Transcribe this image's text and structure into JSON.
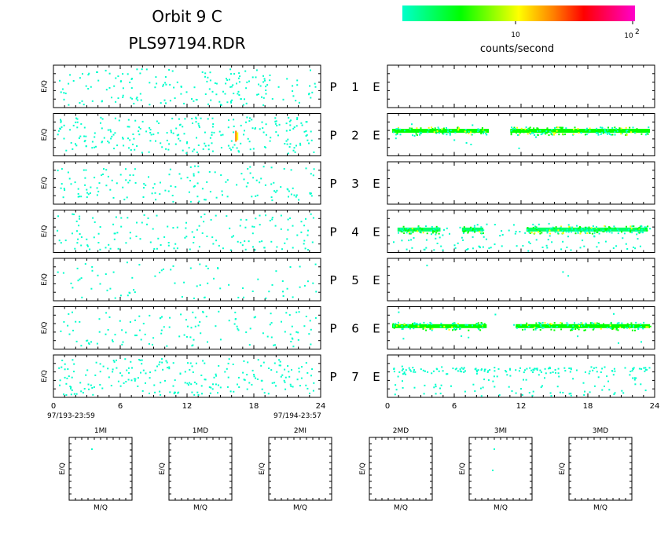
{
  "title": {
    "line1": "Orbit 9 C",
    "line2": "PLS97194.RDR"
  },
  "colorbar": {
    "label": "counts/second",
    "tick_10": "10",
    "tick_100_base": "10",
    "tick_100_exp": "2",
    "colors": [
      "#00ffcc",
      "#00ff00",
      "#ffff00",
      "#ff8000",
      "#ff0000",
      "#ff00cc"
    ]
  },
  "chart_data": [
    {
      "type": "heatmap",
      "description_scope": "Two columns of 7 stacked E/Q vs time strips (P rows), counts/second color-coded",
      "ylabel": "E/Q",
      "x_ticks": [
        "0",
        "6",
        "12",
        "18",
        "24"
      ],
      "xlim": [
        0,
        24
      ],
      "x_start_label": "97/193-23:59",
      "x_end_label": "97/194-23:57",
      "row_labels": [
        {
          "p": "P",
          "n": "1",
          "e": "E"
        },
        {
          "p": "P",
          "n": "2",
          "e": "E"
        },
        {
          "p": "P",
          "n": "3",
          "e": "E"
        },
        {
          "p": "P",
          "n": "4",
          "e": "E"
        },
        {
          "p": "P",
          "n": "5",
          "e": "E"
        },
        {
          "p": "P",
          "n": "6",
          "e": "E"
        },
        {
          "p": "P",
          "n": "7",
          "e": "E"
        }
      ],
      "left_density": [
        0.12,
        0.16,
        0.1,
        0.1,
        0.05,
        0.08,
        0.15
      ],
      "right_bands": [
        {
          "row": 2,
          "level": 0.6,
          "color": "#00ff00",
          "segments": [
            [
              0.0,
              9.0
            ],
            [
              11.0,
              24.0
            ]
          ]
        },
        {
          "row": 4,
          "level": 0.55,
          "color": "#00ff66",
          "segments": [
            [
              0.5,
              4.5
            ],
            [
              6.5,
              8.5
            ],
            [
              12.5,
              23.8
            ]
          ]
        },
        {
          "row": 6,
          "level": 0.55,
          "color": "#00ff00",
          "segments": [
            [
              0.0,
              8.8
            ],
            [
              11.5,
              24.0
            ]
          ]
        }
      ],
      "right_scatter_density": [
        0.0,
        0.01,
        0.0,
        0.08,
        0.002,
        0.01,
        0.08
      ]
    },
    {
      "type": "heatmap",
      "description_scope": "Six small E/Q vs M/Q panels",
      "panels": [
        {
          "title": "1MI",
          "xlabel": "M/Q",
          "ylabel": "E/Q"
        },
        {
          "title": "1MD",
          "xlabel": "M/Q",
          "ylabel": "E/Q"
        },
        {
          "title": "2MI",
          "xlabel": "M/Q",
          "ylabel": "E/Q"
        },
        {
          "title": "2MD",
          "xlabel": "M/Q",
          "ylabel": "E/Q"
        },
        {
          "title": "3MI",
          "xlabel": "M/Q",
          "ylabel": "E/Q"
        },
        {
          "title": "3MD",
          "xlabel": "M/Q",
          "ylabel": "E/Q"
        }
      ]
    }
  ]
}
